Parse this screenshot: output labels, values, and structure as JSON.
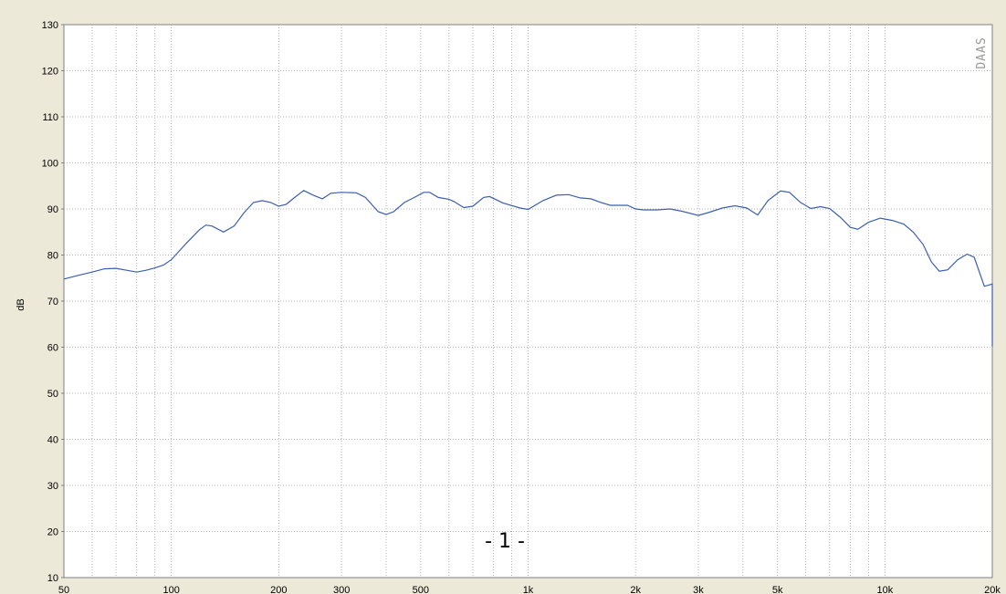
{
  "chart_data": {
    "type": "line",
    "xlabel": "",
    "ylabel": "dB",
    "x_scale": "log",
    "xlim": [
      50,
      20000
    ],
    "ylim": [
      10,
      130
    ],
    "grid": true,
    "x_ticks": [
      50,
      100,
      200,
      300,
      500,
      1000,
      2000,
      3000,
      5000,
      10000,
      20000
    ],
    "x_tick_labels": [
      "50",
      "100",
      "200",
      "300",
      "500",
      "1k",
      "2k",
      "3k",
      "5k",
      "10k",
      "20k"
    ],
    "y_ticks": [
      10,
      20,
      30,
      40,
      50,
      60,
      70,
      80,
      90,
      100,
      110,
      120,
      130
    ],
    "y_tick_labels": [
      "10",
      "20",
      "30",
      "40",
      "50",
      "60",
      "70",
      "80",
      "90",
      "100",
      "110",
      "120",
      "130"
    ],
    "series": [
      {
        "color": "#3b5faf",
        "points": [
          [
            50,
            74.8
          ],
          [
            55,
            75.6
          ],
          [
            60,
            76.3
          ],
          [
            65,
            77.0
          ],
          [
            70,
            77.1
          ],
          [
            75,
            76.7
          ],
          [
            80,
            76.3
          ],
          [
            85,
            76.7
          ],
          [
            90,
            77.2
          ],
          [
            95,
            77.8
          ],
          [
            100,
            79.0
          ],
          [
            110,
            82.5
          ],
          [
            120,
            85.5
          ],
          [
            125,
            86.5
          ],
          [
            130,
            86.3
          ],
          [
            140,
            85.0
          ],
          [
            150,
            86.3
          ],
          [
            160,
            89.2
          ],
          [
            170,
            91.4
          ],
          [
            180,
            91.8
          ],
          [
            190,
            91.4
          ],
          [
            200,
            90.6
          ],
          [
            210,
            91.0
          ],
          [
            220,
            92.3
          ],
          [
            235,
            94.0
          ],
          [
            250,
            93.0
          ],
          [
            265,
            92.2
          ],
          [
            280,
            93.4
          ],
          [
            300,
            93.6
          ],
          [
            330,
            93.5
          ],
          [
            350,
            92.5
          ],
          [
            380,
            89.4
          ],
          [
            400,
            88.8
          ],
          [
            420,
            89.4
          ],
          [
            450,
            91.4
          ],
          [
            480,
            92.5
          ],
          [
            510,
            93.6
          ],
          [
            530,
            93.6
          ],
          [
            560,
            92.5
          ],
          [
            600,
            92.1
          ],
          [
            620,
            91.6
          ],
          [
            660,
            90.3
          ],
          [
            700,
            90.6
          ],
          [
            750,
            92.5
          ],
          [
            780,
            92.7
          ],
          [
            850,
            91.3
          ],
          [
            950,
            90.2
          ],
          [
            1000,
            89.9
          ],
          [
            1100,
            91.8
          ],
          [
            1200,
            93.0
          ],
          [
            1300,
            93.1
          ],
          [
            1400,
            92.4
          ],
          [
            1500,
            92.2
          ],
          [
            1600,
            91.4
          ],
          [
            1700,
            90.8
          ],
          [
            1900,
            90.8
          ],
          [
            2000,
            90.0
          ],
          [
            2100,
            89.8
          ],
          [
            2300,
            89.8
          ],
          [
            2500,
            90.0
          ],
          [
            2700,
            89.5
          ],
          [
            3000,
            88.6
          ],
          [
            3200,
            89.2
          ],
          [
            3500,
            90.2
          ],
          [
            3800,
            90.7
          ],
          [
            4100,
            90.2
          ],
          [
            4400,
            88.7
          ],
          [
            4700,
            91.8
          ],
          [
            5100,
            93.9
          ],
          [
            5400,
            93.6
          ],
          [
            5800,
            91.4
          ],
          [
            6200,
            90.1
          ],
          [
            6600,
            90.5
          ],
          [
            7000,
            90.1
          ],
          [
            7500,
            88.2
          ],
          [
            8000,
            86.0
          ],
          [
            8400,
            85.6
          ],
          [
            9000,
            87.1
          ],
          [
            9700,
            88.0
          ],
          [
            10500,
            87.5
          ],
          [
            11300,
            86.7
          ],
          [
            12000,
            85.0
          ],
          [
            12800,
            82.3
          ],
          [
            13500,
            78.5
          ],
          [
            14200,
            76.5
          ],
          [
            15000,
            76.8
          ],
          [
            16000,
            79.0
          ],
          [
            17000,
            80.2
          ],
          [
            17800,
            79.5
          ],
          [
            19000,
            73.2
          ],
          [
            20000,
            73.7
          ],
          [
            21000,
            73.3
          ],
          [
            22500,
            68.5
          ],
          [
            24000,
            63.5
          ],
          [
            25000,
            60.2
          ]
        ]
      }
    ],
    "annotations": [
      "- 1 -"
    ],
    "watermark": "DAAS"
  },
  "colors": {
    "background": "#ece9d8",
    "plot_area": "#ffffff",
    "grid": "#a0a0a0",
    "axis": "#808080",
    "line": "#3b5faf"
  }
}
